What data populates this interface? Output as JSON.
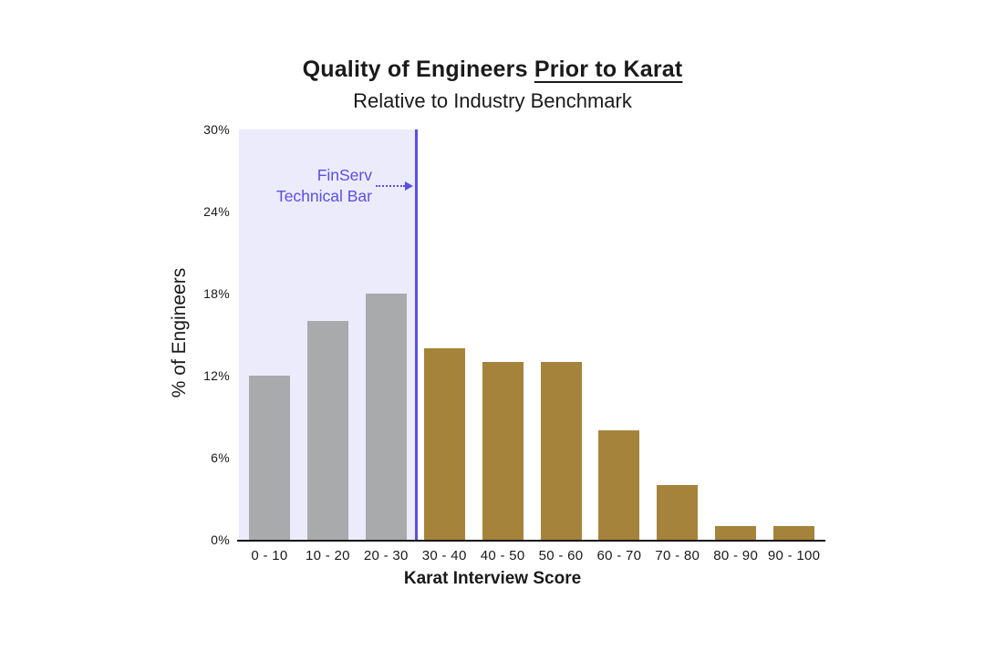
{
  "header": {
    "title_main": "Quality of Engineers",
    "title_underlined": "Prior to Karat",
    "subtitle": "Relative to Industry Benchmark"
  },
  "annotation": {
    "line1": "FinServ",
    "line2": "Technical Bar"
  },
  "colors": {
    "gray_bar": "#a8aaab",
    "gold_bar": "#a6833b",
    "purple": "#5a4fe3",
    "lavender_shade": "#ecebfc",
    "axis_line": "#111111",
    "text": "#1a1a1a"
  },
  "chart_data": {
    "type": "bar",
    "title": "Quality of Engineers Prior to Karat",
    "subtitle": "Relative to Industry Benchmark",
    "categories": [
      "0 - 10",
      "10 - 20",
      "20 - 30",
      "30 - 40",
      "40 - 50",
      "50 - 60",
      "60 - 70",
      "70 - 80",
      "80 - 90",
      "90 - 100"
    ],
    "values": [
      12,
      16,
      18,
      14,
      13,
      13,
      8,
      4,
      1,
      1
    ],
    "units": "percent",
    "bar_group_split_index": 3,
    "xlabel": "Karat Interview Score",
    "ylabel": "% of Engineers",
    "ylim": [
      0,
      30
    ],
    "ytick_labels": [
      "0%",
      "6%",
      "12%",
      "18%",
      "24%",
      "30%"
    ],
    "ytick_values": [
      0,
      6,
      12,
      18,
      24,
      30
    ],
    "grid": false,
    "legend": "none",
    "annotation": {
      "text": "FinServ Technical Bar",
      "threshold_score": 30,
      "shaded_categories": [
        "0 - 10",
        "10 - 20",
        "20 - 30"
      ]
    }
  }
}
